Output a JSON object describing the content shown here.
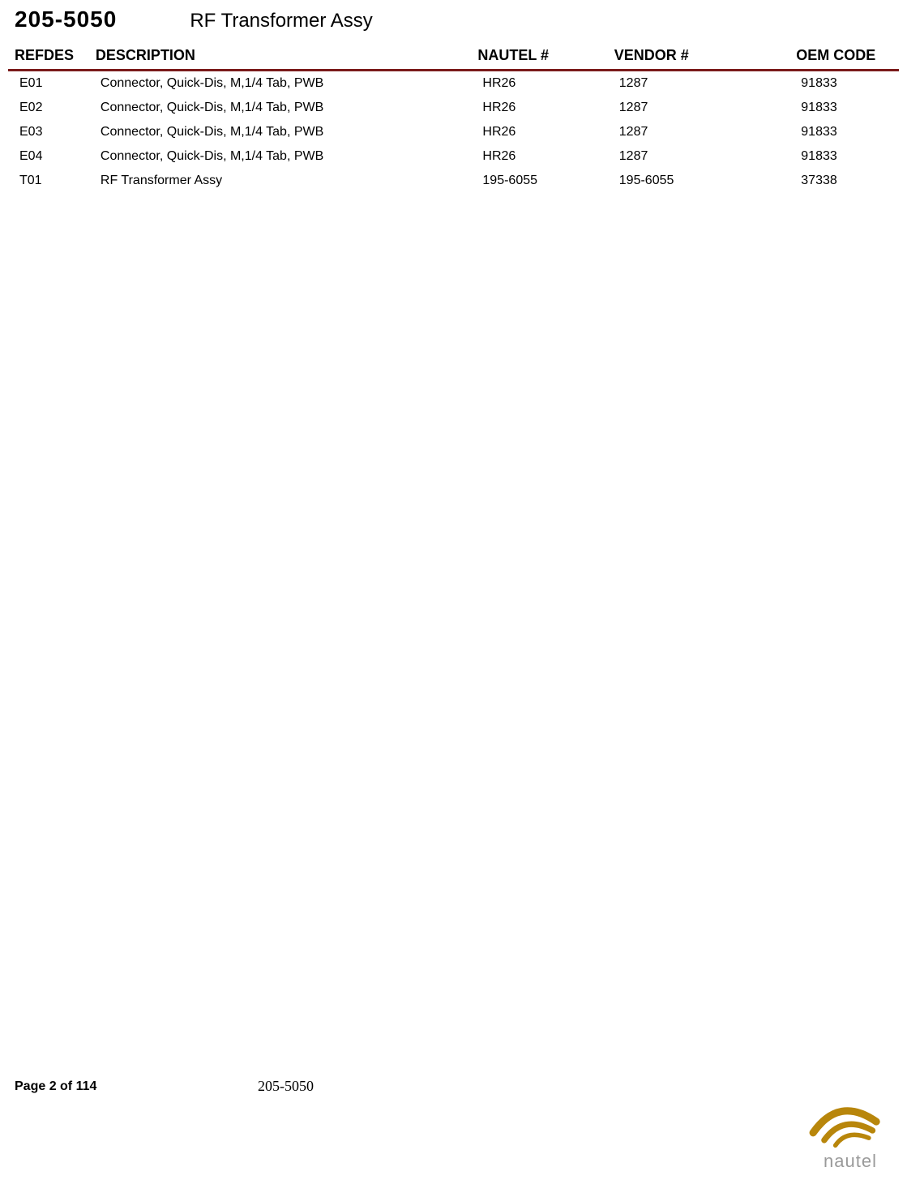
{
  "header": {
    "part_number": "205-5050",
    "title": "RF Transformer Assy"
  },
  "table": {
    "columns": [
      {
        "key": "refdes",
        "label": "REFDES",
        "class": "col-refdes"
      },
      {
        "key": "description",
        "label": "DESCRIPTION",
        "class": "col-desc"
      },
      {
        "key": "nautel",
        "label": "NAUTEL  #",
        "class": "col-nautel"
      },
      {
        "key": "vendor",
        "label": "VENDOR #",
        "class": "col-vendor"
      },
      {
        "key": "oem",
        "label": "OEM CODE",
        "class": "col-oem"
      }
    ],
    "rows": [
      {
        "refdes": "E01",
        "description": "Connector, Quick-Dis, M,1/4 Tab, PWB",
        "nautel": "HR26",
        "vendor": "1287",
        "oem": "91833"
      },
      {
        "refdes": "E02",
        "description": "Connector, Quick-Dis, M,1/4 Tab, PWB",
        "nautel": "HR26",
        "vendor": "1287",
        "oem": "91833"
      },
      {
        "refdes": "E03",
        "description": "Connector, Quick-Dis, M,1/4 Tab, PWB",
        "nautel": "HR26",
        "vendor": "1287",
        "oem": "91833"
      },
      {
        "refdes": "E04",
        "description": "Connector, Quick-Dis, M,1/4 Tab, PWB",
        "nautel": "HR26",
        "vendor": "1287",
        "oem": "91833"
      },
      {
        "refdes": "T01",
        "description": "RF Transformer Assy",
        "nautel": "195-6055",
        "vendor": "195-6055",
        "oem": "37338"
      }
    ],
    "header_border_color": "#7a1a1a",
    "header_fontsize": 18,
    "cell_fontsize": 16
  },
  "footer": {
    "page_label": "Page 2 of 114",
    "part_ref": "205-5050"
  },
  "logo": {
    "text": "nautel",
    "wave_color": "#b8860b",
    "text_color": "#9a9a9a"
  }
}
